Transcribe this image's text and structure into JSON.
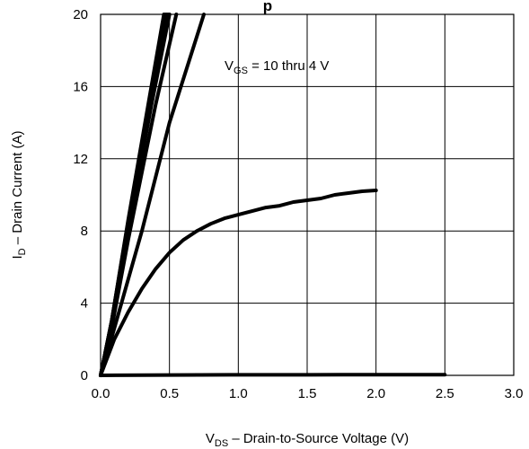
{
  "chart_data": {
    "type": "line",
    "title_fragment": "p",
    "xlabel": {
      "prefix": "V",
      "subscript": "DS",
      "text": " –  Drain-to-Source Voltage (V)"
    },
    "ylabel": {
      "prefix": "I",
      "subscript": "D",
      "text": " –  Drain Current (A)"
    },
    "annotation": {
      "prefix": "V",
      "subscript": "GS",
      "text": " = 10 thru 4 V"
    },
    "xlim": [
      0,
      3.0
    ],
    "ylim": [
      0,
      20
    ],
    "x_ticks": [
      "0.0",
      "0.5",
      "1.0",
      "1.5",
      "2.0",
      "2.5",
      "3.0"
    ],
    "y_ticks": [
      "0",
      "4",
      "8",
      "12",
      "16",
      "20"
    ],
    "grid": true,
    "series": [
      {
        "points": [
          [
            0,
            0
          ],
          [
            0.08,
            3
          ],
          [
            0.2,
            8.5
          ],
          [
            0.35,
            15
          ],
          [
            0.47,
            20
          ]
        ]
      },
      {
        "points": [
          [
            0,
            0
          ],
          [
            0.08,
            3
          ],
          [
            0.2,
            8.6
          ],
          [
            0.35,
            15.2
          ],
          [
            0.46,
            20
          ]
        ]
      },
      {
        "points": [
          [
            0,
            0
          ],
          [
            0.08,
            3
          ],
          [
            0.2,
            8.4
          ],
          [
            0.36,
            15.3
          ],
          [
            0.48,
            20
          ]
        ]
      },
      {
        "points": [
          [
            0,
            0
          ],
          [
            0.08,
            2.9
          ],
          [
            0.2,
            8.2
          ],
          [
            0.36,
            15
          ],
          [
            0.49,
            20
          ]
        ]
      },
      {
        "points": [
          [
            0,
            0
          ],
          [
            0.08,
            2.8
          ],
          [
            0.2,
            8
          ],
          [
            0.37,
            15
          ],
          [
            0.5,
            20
          ]
        ]
      },
      {
        "points": [
          [
            0,
            0
          ],
          [
            0.08,
            2.6
          ],
          [
            0.2,
            7.5
          ],
          [
            0.4,
            15
          ],
          [
            0.55,
            20
          ]
        ]
      },
      {
        "points": [
          [
            0,
            0
          ],
          [
            0.1,
            2.6
          ],
          [
            0.3,
            8
          ],
          [
            0.5,
            14
          ],
          [
            0.75,
            20
          ]
        ]
      },
      {
        "points": [
          [
            0,
            0
          ],
          [
            0.1,
            2
          ],
          [
            0.2,
            3.5
          ],
          [
            0.3,
            4.8
          ],
          [
            0.4,
            5.9
          ],
          [
            0.5,
            6.8
          ],
          [
            0.6,
            7.5
          ],
          [
            0.7,
            8
          ],
          [
            0.8,
            8.4
          ],
          [
            0.9,
            8.7
          ],
          [
            1.0,
            8.9
          ],
          [
            1.1,
            9.1
          ],
          [
            1.2,
            9.3
          ],
          [
            1.3,
            9.4
          ],
          [
            1.4,
            9.6
          ],
          [
            1.5,
            9.7
          ],
          [
            1.6,
            9.8
          ],
          [
            1.7,
            10.0
          ],
          [
            1.8,
            10.1
          ],
          [
            1.9,
            10.2
          ],
          [
            2.0,
            10.25
          ]
        ]
      },
      {
        "points": [
          [
            0,
            0
          ],
          [
            0.5,
            0.02
          ],
          [
            1.0,
            0.03
          ],
          [
            1.5,
            0.03
          ],
          [
            2.0,
            0.04
          ],
          [
            2.5,
            0.04
          ]
        ]
      }
    ]
  }
}
